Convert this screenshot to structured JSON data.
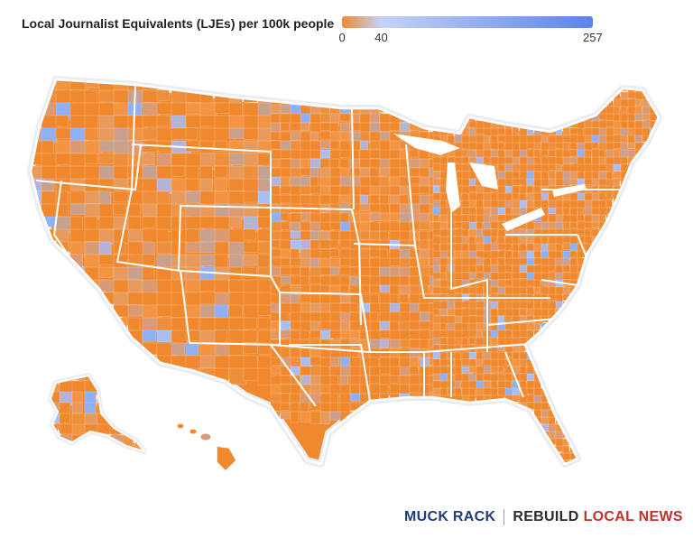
{
  "legend": {
    "title": "Local Journalist Equivalents (LJEs) per 100k people",
    "min_label": "0",
    "mid_label": "40",
    "max_label": "257",
    "min": 0,
    "mid": 40,
    "max": 257,
    "low_color": "#f0892e",
    "mid_color": "#c5d2f8",
    "high_color": "#5b83ec"
  },
  "map": {
    "region": "contiguous-united-states-alaska-hawaii",
    "dominant_color": "#f0892e",
    "border_color": "#ffffff"
  },
  "footer": {
    "brand": "MUCK RACK",
    "brand_color": "#1f3f7a",
    "partner_part1": "REBUILD",
    "partner_part2": "LOCAL NEWS",
    "partner_color1": "#2b2b2b",
    "partner_color2": "#c4302b"
  }
}
